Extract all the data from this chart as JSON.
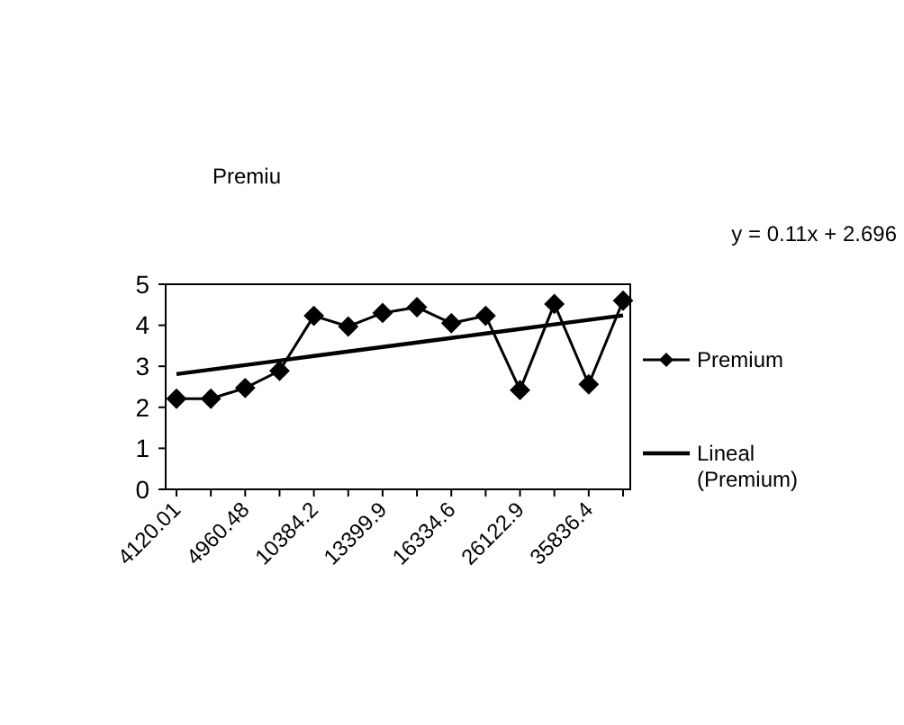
{
  "chart_data": {
    "type": "line",
    "title": "Premiu",
    "categories": [
      "4120.01",
      null,
      "4960.48",
      null,
      "10384.2",
      null,
      "13399.9",
      null,
      "16334.6",
      null,
      "26122.9",
      null,
      "35836.4",
      null
    ],
    "series": [
      {
        "name": "Premium",
        "color": "#000000",
        "marker": "diamond",
        "values": [
          2.21,
          2.21,
          2.47,
          2.89,
          4.23,
          3.97,
          4.3,
          4.44,
          4.05,
          4.23,
          2.42,
          4.52,
          2.56,
          4.6
        ]
      },
      {
        "name": "Lineal (Premium)",
        "color": "#000000",
        "marker": "none",
        "values": [
          2.81,
          2.92,
          3.03,
          3.14,
          3.25,
          3.36,
          3.47,
          3.58,
          3.69,
          3.8,
          3.91,
          4.02,
          4.13,
          4.24
        ]
      }
    ],
    "annotations": [
      "y = 0.11x + 2.696"
    ],
    "ylim": [
      0,
      5
    ],
    "yticks": [
      0,
      1,
      2,
      3,
      4,
      5
    ],
    "grid": false,
    "legend": "right"
  }
}
